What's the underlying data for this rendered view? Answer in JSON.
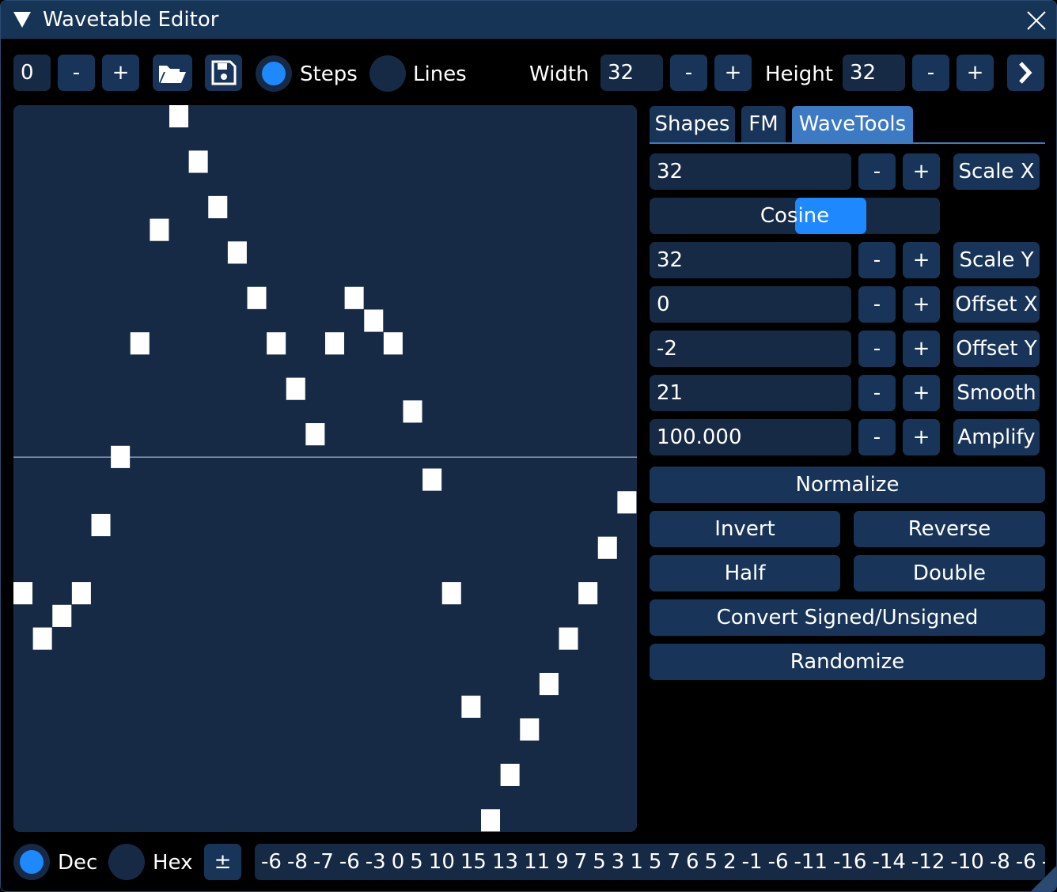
{
  "window": {
    "title": "Wavetable Editor"
  },
  "toolbar": {
    "index": "0",
    "minus": "-",
    "plus": "+",
    "steps": "Steps",
    "lines": "Lines",
    "width_label": "Width",
    "width": "32",
    "height_label": "Height",
    "height": "32"
  },
  "tabs": [
    "Shapes",
    "FM",
    "WaveTools"
  ],
  "wavetools": {
    "rows": [
      {
        "value": "32",
        "label": "Scale X"
      },
      {
        "value": "32",
        "label": "Scale Y"
      },
      {
        "value": "0",
        "label": "Offset X"
      },
      {
        "value": "-2",
        "label": "Offset Y"
      },
      {
        "value": "21",
        "label": "Smooth"
      },
      {
        "value": "100.000",
        "label": "Amplify"
      }
    ],
    "shape": "Cosine",
    "buttons": [
      "Normalize",
      "Invert",
      "Reverse",
      "Half",
      "Double",
      "Convert Signed/Unsigned",
      "Randomize"
    ]
  },
  "wave": {
    "values": [
      -6,
      -8,
      -7,
      -6,
      -3,
      0,
      5,
      10,
      15,
      13,
      11,
      9,
      7,
      5,
      3,
      1,
      5,
      7,
      6,
      5,
      2,
      -1,
      -6,
      -11,
      -16,
      -14,
      -12,
      -10,
      -8,
      -6,
      -4,
      -2
    ]
  },
  "footer": {
    "dec": "Dec",
    "hex": "Hex",
    "sign": "±"
  }
}
